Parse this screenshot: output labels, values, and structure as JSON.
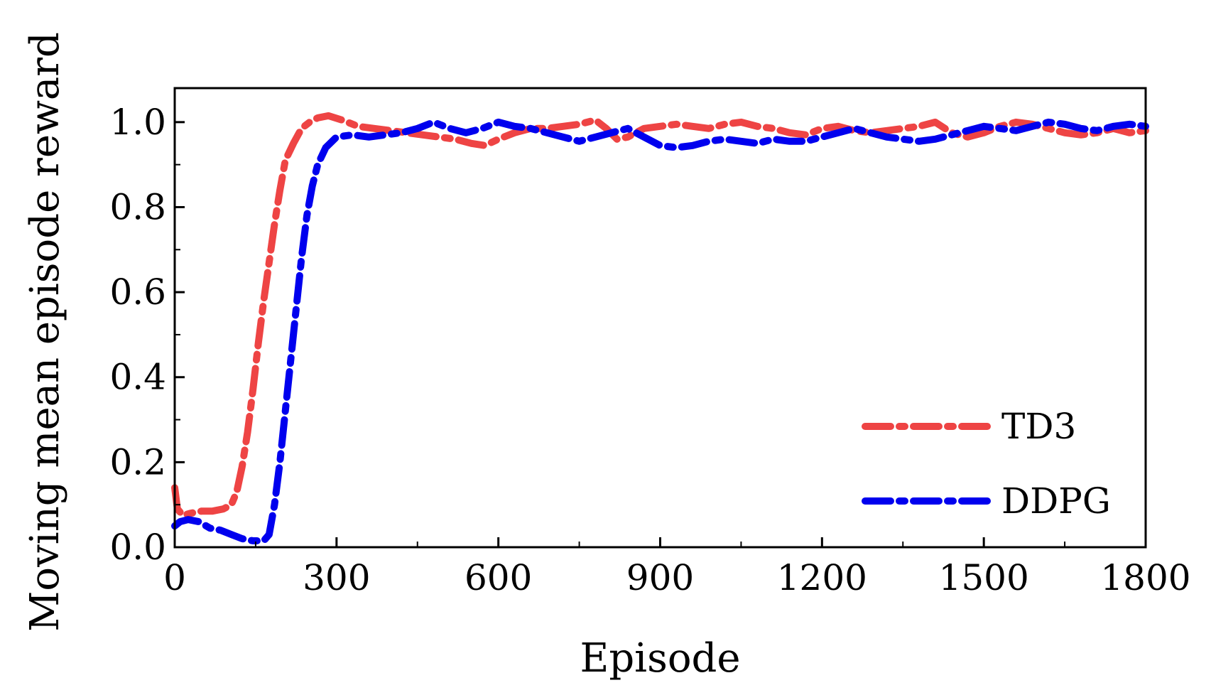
{
  "chart_data": {
    "type": "line",
    "title": "",
    "xlabel": "Episode",
    "ylabel": "Moving mean episode reward",
    "xlim": [
      0,
      1800
    ],
    "ylim": [
      0,
      1.08
    ],
    "xticks": [
      0,
      300,
      600,
      900,
      1200,
      1500,
      1800
    ],
    "xtick_labels": [
      "0",
      "300",
      "600",
      "900",
      "1200",
      "1500",
      "1800"
    ],
    "yticks": [
      0,
      0.2,
      0.4,
      0.6,
      0.8,
      1.0
    ],
    "ytick_labels": [
      "0.0",
      "0.2",
      "0.4",
      "0.6",
      "0.8",
      "1.0"
    ],
    "grid": false,
    "legend_position": "bottom-right",
    "series": [
      {
        "name": "TD3",
        "color": "#ee4444",
        "line_style": "dash-dot",
        "points": [
          [
            0,
            0.14
          ],
          [
            5,
            0.09
          ],
          [
            15,
            0.075
          ],
          [
            30,
            0.08
          ],
          [
            50,
            0.085
          ],
          [
            70,
            0.085
          ],
          [
            90,
            0.09
          ],
          [
            105,
            0.1
          ],
          [
            115,
            0.13
          ],
          [
            125,
            0.19
          ],
          [
            135,
            0.27
          ],
          [
            145,
            0.37
          ],
          [
            155,
            0.48
          ],
          [
            165,
            0.58
          ],
          [
            175,
            0.67
          ],
          [
            185,
            0.76
          ],
          [
            195,
            0.84
          ],
          [
            205,
            0.91
          ],
          [
            220,
            0.95
          ],
          [
            235,
            0.985
          ],
          [
            250,
            1.0
          ],
          [
            265,
            1.01
          ],
          [
            285,
            1.015
          ],
          [
            310,
            1.005
          ],
          [
            340,
            0.99
          ],
          [
            370,
            0.985
          ],
          [
            400,
            0.98
          ],
          [
            430,
            0.975
          ],
          [
            460,
            0.97
          ],
          [
            490,
            0.965
          ],
          [
            520,
            0.96
          ],
          [
            550,
            0.95
          ],
          [
            575,
            0.945
          ],
          [
            600,
            0.96
          ],
          [
            630,
            0.975
          ],
          [
            660,
            0.985
          ],
          [
            690,
            0.985
          ],
          [
            720,
            0.99
          ],
          [
            750,
            0.995
          ],
          [
            780,
            1.005
          ],
          [
            800,
            0.985
          ],
          [
            820,
            0.96
          ],
          [
            840,
            0.965
          ],
          [
            870,
            0.985
          ],
          [
            900,
            0.99
          ],
          [
            930,
            0.995
          ],
          [
            960,
            0.99
          ],
          [
            990,
            0.985
          ],
          [
            1020,
            0.995
          ],
          [
            1050,
            1.0
          ],
          [
            1080,
            0.99
          ],
          [
            1110,
            0.985
          ],
          [
            1140,
            0.975
          ],
          [
            1170,
            0.97
          ],
          [
            1200,
            0.985
          ],
          [
            1230,
            0.99
          ],
          [
            1260,
            0.98
          ],
          [
            1290,
            0.975
          ],
          [
            1320,
            0.98
          ],
          [
            1350,
            0.985
          ],
          [
            1380,
            0.99
          ],
          [
            1410,
            1.0
          ],
          [
            1440,
            0.975
          ],
          [
            1470,
            0.965
          ],
          [
            1500,
            0.975
          ],
          [
            1530,
            0.99
          ],
          [
            1560,
            1.0
          ],
          [
            1590,
            0.995
          ],
          [
            1620,
            0.985
          ],
          [
            1650,
            0.975
          ],
          [
            1680,
            0.97
          ],
          [
            1710,
            0.975
          ],
          [
            1740,
            0.985
          ],
          [
            1770,
            0.975
          ],
          [
            1800,
            0.98
          ]
        ]
      },
      {
        "name": "DDPG",
        "color": "#0000ee",
        "line_style": "dash-dot",
        "points": [
          [
            0,
            0.05
          ],
          [
            10,
            0.06
          ],
          [
            25,
            0.065
          ],
          [
            45,
            0.06
          ],
          [
            65,
            0.045
          ],
          [
            85,
            0.04
          ],
          [
            105,
            0.03
          ],
          [
            125,
            0.02
          ],
          [
            145,
            0.015
          ],
          [
            165,
            0.015
          ],
          [
            175,
            0.03
          ],
          [
            185,
            0.1
          ],
          [
            195,
            0.2
          ],
          [
            205,
            0.32
          ],
          [
            215,
            0.44
          ],
          [
            225,
            0.56
          ],
          [
            235,
            0.68
          ],
          [
            245,
            0.78
          ],
          [
            255,
            0.85
          ],
          [
            265,
            0.9
          ],
          [
            280,
            0.94
          ],
          [
            300,
            0.965
          ],
          [
            330,
            0.97
          ],
          [
            360,
            0.965
          ],
          [
            390,
            0.97
          ],
          [
            420,
            0.975
          ],
          [
            450,
            0.985
          ],
          [
            480,
            1.0
          ],
          [
            510,
            0.985
          ],
          [
            540,
            0.975
          ],
          [
            570,
            0.985
          ],
          [
            600,
            1.0
          ],
          [
            630,
            0.99
          ],
          [
            660,
            0.985
          ],
          [
            690,
            0.975
          ],
          [
            720,
            0.965
          ],
          [
            750,
            0.955
          ],
          [
            780,
            0.965
          ],
          [
            810,
            0.975
          ],
          [
            840,
            0.985
          ],
          [
            870,
            0.965
          ],
          [
            900,
            0.945
          ],
          [
            930,
            0.94
          ],
          [
            960,
            0.945
          ],
          [
            990,
            0.955
          ],
          [
            1020,
            0.96
          ],
          [
            1050,
            0.955
          ],
          [
            1080,
            0.95
          ],
          [
            1110,
            0.96
          ],
          [
            1140,
            0.955
          ],
          [
            1170,
            0.955
          ],
          [
            1200,
            0.965
          ],
          [
            1230,
            0.975
          ],
          [
            1260,
            0.985
          ],
          [
            1290,
            0.975
          ],
          [
            1320,
            0.965
          ],
          [
            1350,
            0.96
          ],
          [
            1380,
            0.955
          ],
          [
            1410,
            0.96
          ],
          [
            1440,
            0.97
          ],
          [
            1470,
            0.98
          ],
          [
            1500,
            0.99
          ],
          [
            1530,
            0.985
          ],
          [
            1560,
            0.98
          ],
          [
            1590,
            0.99
          ],
          [
            1620,
            1.0
          ],
          [
            1650,
            0.995
          ],
          [
            1680,
            0.985
          ],
          [
            1710,
            0.98
          ],
          [
            1740,
            0.99
          ],
          [
            1770,
            0.995
          ],
          [
            1800,
            0.99
          ]
        ]
      }
    ]
  }
}
